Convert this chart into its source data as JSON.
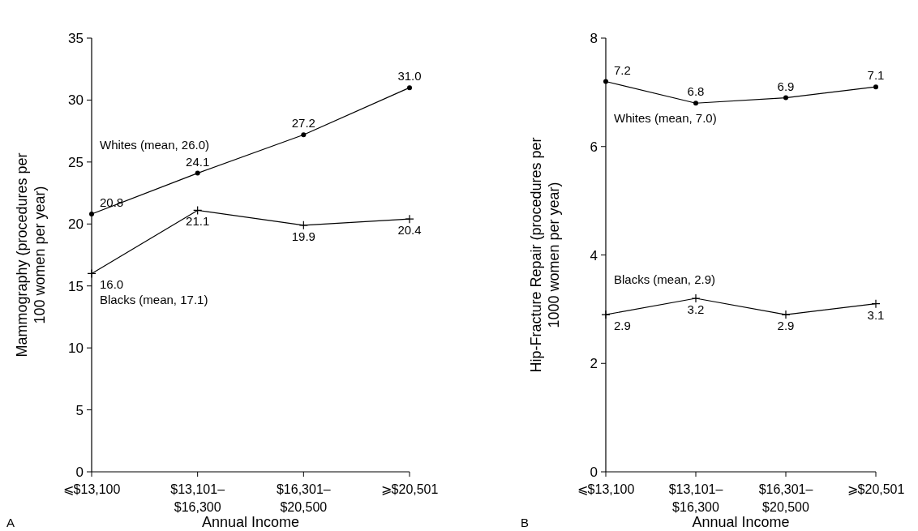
{
  "chart_data": [
    {
      "type": "line",
      "xlabel": "Annual Income",
      "ylabel": "Mammography (procedures per 100 women per year)",
      "categories": [
        "⩽$13,100",
        "$13,101–$16,300",
        "$16,301–$20,500",
        "⩾$20,501"
      ],
      "series": [
        {
          "name": "Whites (mean, 26.0)",
          "color": "#000000",
          "marker": "circle",
          "values": [
            20.8,
            24.1,
            27.2,
            31.0
          ],
          "value_labels": [
            "20.8",
            "24.1",
            "27.2",
            "31.0"
          ]
        },
        {
          "name": "Blacks (mean, 17.1)",
          "color": "#000000",
          "marker": "cross",
          "values": [
            16.0,
            21.1,
            19.9,
            20.4
          ],
          "value_labels": [
            "16.0",
            "21.1",
            "19.9",
            "20.4"
          ]
        }
      ],
      "ylim": [
        0,
        35
      ],
      "yticks": [
        0,
        5,
        10,
        15,
        20,
        25,
        30,
        35
      ],
      "line_style": "solid",
      "annotations": [
        "A"
      ]
    },
    {
      "type": "line",
      "xlabel": "Annual Income",
      "ylabel": "Hip-Fracture Repair (procedures per 1000 women per year)",
      "categories": [
        "⩽$13,100",
        "$13,101–$16,300",
        "$16,301–$20,500",
        "⩾$20,501"
      ],
      "series": [
        {
          "name": "Whites (mean, 7.0)",
          "color": "#000000",
          "marker": "circle",
          "values": [
            7.2,
            6.8,
            6.9,
            7.1
          ],
          "value_labels": [
            "7.2",
            "6.8",
            "6.9",
            "7.1"
          ]
        },
        {
          "name": "Blacks (mean, 2.9)",
          "color": "#000000",
          "marker": "cross",
          "values": [
            2.9,
            3.2,
            2.9,
            3.1
          ],
          "value_labels": [
            "2.9",
            "3.2",
            "2.9",
            "3.1"
          ]
        }
      ],
      "ylim": [
        0,
        8
      ],
      "yticks": [
        0,
        2,
        4,
        6,
        8
      ],
      "line_style": "solid",
      "annotations": [
        "B"
      ]
    }
  ]
}
